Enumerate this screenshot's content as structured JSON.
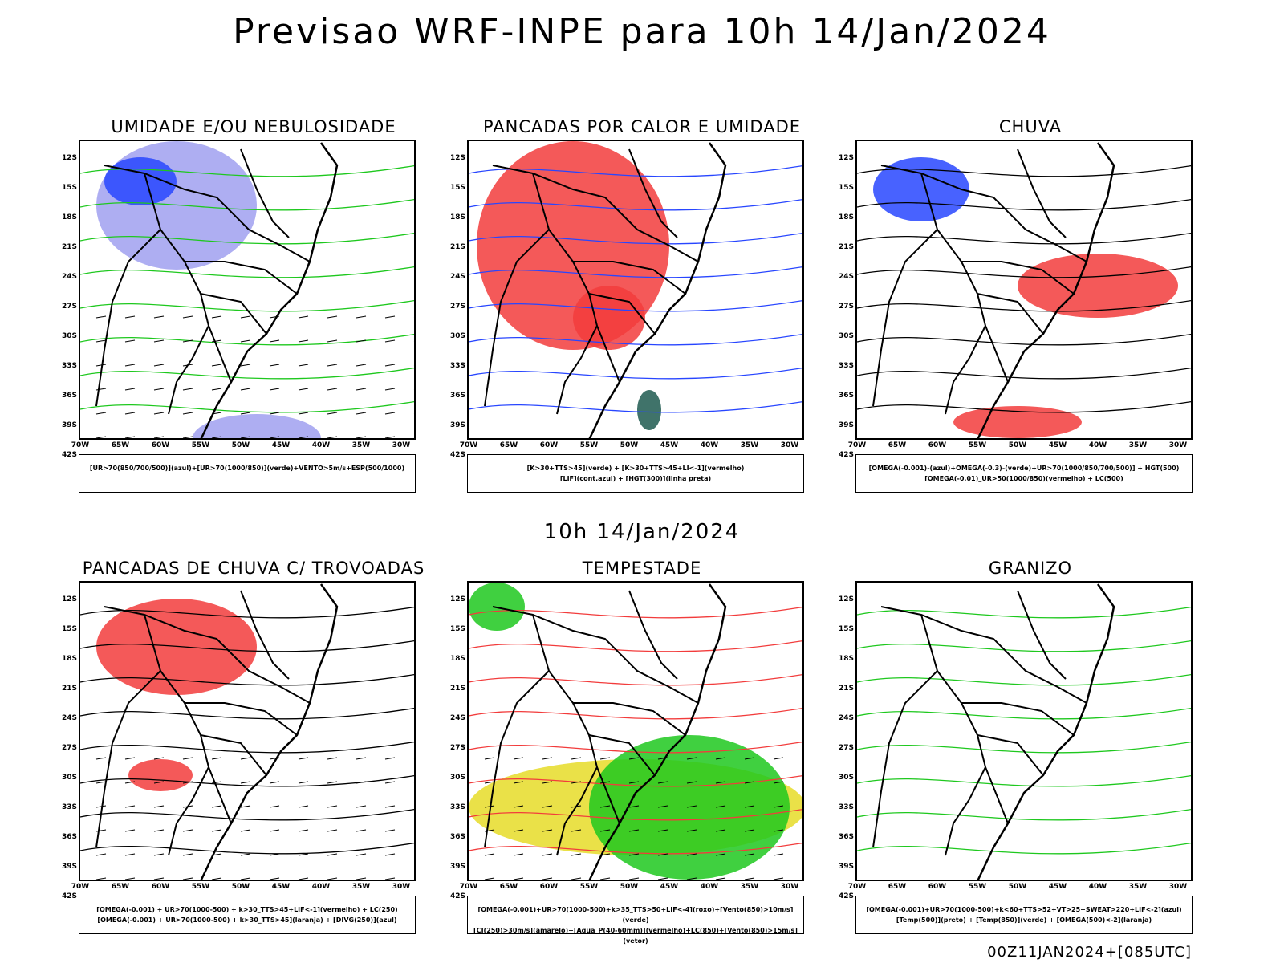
{
  "title": "Previsao WRF-INPE  para 10h 14/Jan/2024",
  "mid_time": "10h 14/Jan/2024",
  "footer": "00Z11JAN2024+[085UTC]",
  "lat_labels": [
    "12S",
    "15S",
    "18S",
    "21S",
    "24S",
    "27S",
    "30S",
    "33S",
    "36S",
    "39S",
    "42S"
  ],
  "lon_labels": [
    "70W",
    "65W",
    "60W",
    "55W",
    "50W",
    "45W",
    "40W",
    "35W",
    "30W"
  ],
  "colors": {
    "red": "#f23c3c",
    "green": "#1ec81e",
    "blue": "#2846ff",
    "lavender": "#a0a0f0",
    "teal": "#1e5a50",
    "yellow": "#e6dc28",
    "orange": "#f08c28",
    "purple": "#b400c8"
  },
  "panels": [
    {
      "title": "UMIDADE E/OU NEBULOSIDADE",
      "legend": [
        "[UR>70(850/700/500)](azul)+[UR>70(1000/850)](verde)+VENTO>5m/s+ESP(500/1000)"
      ]
    },
    {
      "title": "PANCADAS POR CALOR E UMIDADE",
      "legend": [
        "[K>30+TTS>45](verde) + [K>30+TTS>45+LI<-1](vermelho)",
        "[LIF](cont.azul) + [HGT(300)](linha preta)"
      ]
    },
    {
      "title": "CHUVA",
      "legend": [
        "[OMEGA(-0.001)-(azul)+OMEGA(-0.3)-(verde)+UR>70(1000/850/700/500)] + HGT(500)",
        "[OMEGA(-0.01)_UR>50(1000/850)(vermelho) + LC(500)"
      ]
    },
    {
      "title": "PANCADAS DE CHUVA C/ TROVOADAS",
      "legend": [
        "[OMEGA(-0.001) + UR>70(1000-500) + k>30_TTS>45+LIF<-1](vermelho) + LC(250)",
        "[OMEGA(-0.001) + UR>70(1000-500) + k>30_TTS>45](laranja) + [DIVG(250)](azul)"
      ]
    },
    {
      "title": "TEMPESTADE",
      "legend": [
        "[OMEGA(-0.001)+UR>70(1000-500)+k>35_TTS>50+LIF<-4](roxo)+[Vento(850)>10m/s](verde)",
        "[CJ(250)>30m/s](amarelo)+[Agua_P(40-60mm)](vermelho)+LC(850)+[Vento(850)>15m/s](vetor)"
      ]
    },
    {
      "title": "GRANIZO",
      "legend": [
        "[OMEGA(-0.001)+UR>70(1000-500)+k<60+TTS>52+VT>25+SWEAT>220+LIF<-2](azul)",
        "[Temp(500)](preto) + [Temp(850)](verde) + [OMEGA(500)<-2](laranja)"
      ]
    }
  ]
}
